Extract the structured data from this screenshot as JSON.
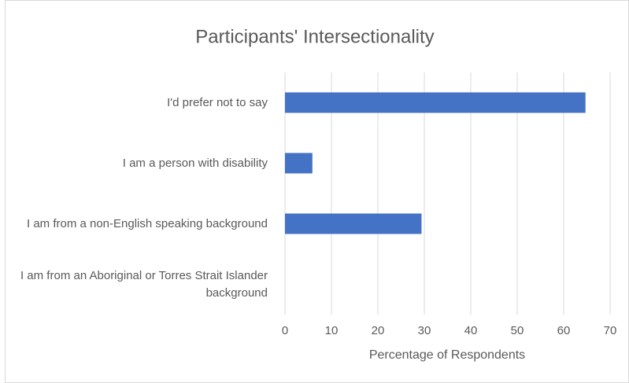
{
  "chart_data": {
    "type": "bar",
    "orientation": "horizontal",
    "title": "Participants' Intersectionality",
    "x_label": "Percentage of Respondents",
    "categories": [
      "I'd prefer not to say",
      "I am a person with disability",
      "I am from a non-English speaking background",
      "I am from an Aboriginal or Torres Strait Islander background"
    ],
    "values": [
      64.7,
      5.9,
      29.4,
      0
    ],
    "color": "#4472c4",
    "xlim": [
      0,
      70
    ],
    "xticks": [
      0,
      10,
      20,
      30,
      40,
      50,
      60,
      70
    ],
    "grid": true
  }
}
